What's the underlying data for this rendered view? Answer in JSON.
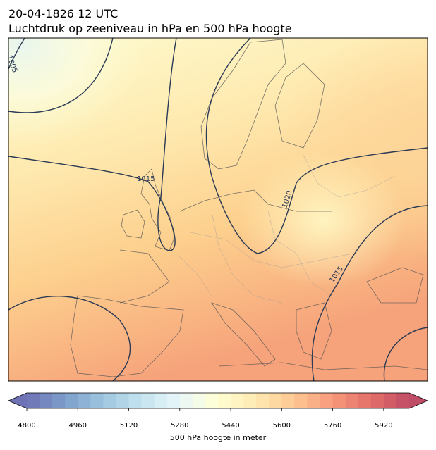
{
  "title": {
    "line1": "20-04-1826 12 UTC",
    "line2": "Luchtdruk op zeeniveau in hPa en 500 hPa hoogte"
  },
  "map": {
    "contour_labels": [
      "1005",
      "1015",
      "1020",
      "1015"
    ],
    "line_color": "#2b3a55"
  },
  "colorbar": {
    "lim": [
      4800,
      6000
    ],
    "step": 40,
    "ticks": [
      4800,
      4960,
      5120,
      5280,
      5440,
      5600,
      5760,
      5920
    ],
    "label": "500 hPa hoogte in meter",
    "colors": [
      "#313695",
      "#4575b4",
      "#74add1",
      "#abd9e9",
      "#e0f3f8",
      "#ffffbf",
      "#fee090",
      "#fdae61",
      "#f46d43",
      "#d73027",
      "#a50026"
    ],
    "alpha": 0.7
  }
}
